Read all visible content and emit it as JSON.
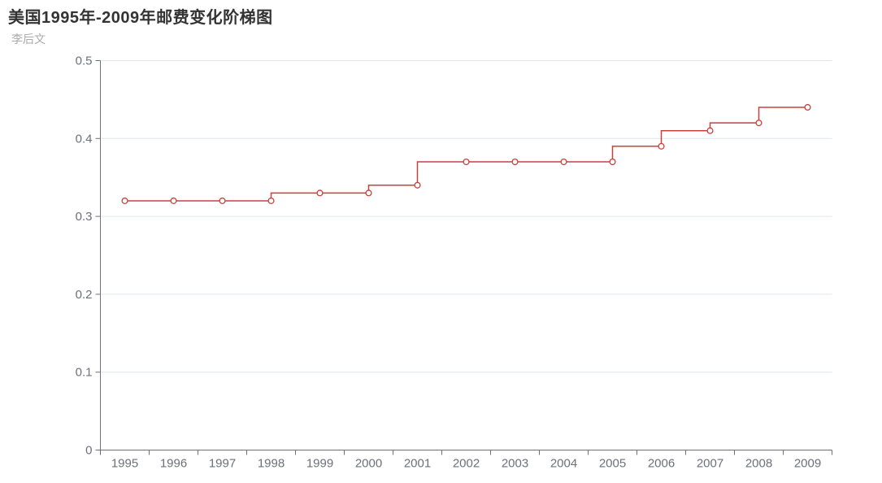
{
  "header": {
    "title": "美国1995年-2009年邮费变化阶梯图",
    "subtitle": "李后文"
  },
  "chart_data": {
    "type": "line",
    "step": "start",
    "title": "美国1995年-2009年邮费变化阶梯图",
    "subtitle": "李后文",
    "categories": [
      "1995",
      "1996",
      "1997",
      "1998",
      "1999",
      "2000",
      "2001",
      "2002",
      "2003",
      "2004",
      "2005",
      "2006",
      "2007",
      "2008",
      "2009"
    ],
    "values": [
      0.32,
      0.32,
      0.32,
      0.32,
      0.33,
      0.33,
      0.34,
      0.37,
      0.37,
      0.37,
      0.37,
      0.39,
      0.41,
      0.42,
      0.44
    ],
    "xlabel": "",
    "ylabel": "",
    "ylim": [
      0,
      0.5
    ],
    "yticks": [
      0,
      0.1,
      0.2,
      0.3,
      0.4,
      0.5
    ],
    "ytick_labels": [
      "0",
      "0.1",
      "0.2",
      "0.3",
      "0.4",
      "0.5"
    ],
    "grid": "horizontal",
    "legend": "none",
    "marker": "hollow-circle",
    "colors": {
      "line": "#c5423c",
      "marker_fill": "#ffffff",
      "axis": "#6e7079",
      "tick_label": "#6e7079",
      "gridline": "#e0e6f1",
      "title": "#333333",
      "subtitle": "#aaaaaa",
      "background": "#ffffff"
    }
  }
}
